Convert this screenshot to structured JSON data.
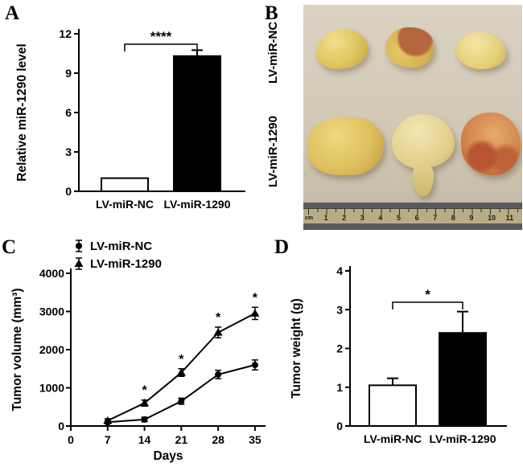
{
  "panels": {
    "A": {
      "letter": "A"
    },
    "B": {
      "letter": "B",
      "row_labels": [
        "LV-miR-NC",
        "LV-miR-1290"
      ],
      "ruler_unit": "cm",
      "ruler_numbers": [
        1,
        2,
        3,
        4,
        5,
        6,
        7,
        8,
        9,
        10,
        11
      ]
    },
    "C": {
      "letter": "C"
    },
    "D": {
      "letter": "D"
    }
  },
  "chart_data": [
    {
      "panel": "A",
      "type": "bar",
      "categories": [
        "LV-miR-NC",
        "LV-miR-1290"
      ],
      "values": [
        1.0,
        10.3
      ],
      "errors": [
        0.05,
        0.45
      ],
      "bar_colors": [
        "#ffffff",
        "#000000"
      ],
      "ylabel": "Relative miR-1290 level",
      "ylim": [
        0,
        12
      ],
      "yticks": [
        0,
        3,
        6,
        9,
        12
      ],
      "significance": {
        "label": "****",
        "between": [
          0,
          1
        ]
      }
    },
    {
      "panel": "C",
      "type": "line",
      "x": [
        7,
        14,
        21,
        28,
        35
      ],
      "xticks": [
        0,
        7,
        14,
        21,
        28,
        35
      ],
      "xlim": [
        0,
        37
      ],
      "xlabel": "Days",
      "ylabel": "Tumor volume (mm³)",
      "ylim": [
        0,
        4000
      ],
      "yticks": [
        0,
        1000,
        2000,
        3000,
        4000
      ],
      "series": [
        {
          "name": "LV-miR-NC",
          "marker": "circle",
          "values": [
            100,
            170,
            650,
            1350,
            1600
          ],
          "errors": [
            40,
            60,
            80,
            110,
            130
          ]
        },
        {
          "name": "LV-miR-1290",
          "marker": "triangle",
          "values": [
            140,
            600,
            1400,
            2450,
            2950
          ],
          "errors": [
            50,
            80,
            100,
            140,
            160
          ],
          "sig_points": [
            1,
            2,
            3,
            4
          ],
          "sig_label": "*"
        }
      ]
    },
    {
      "panel": "D",
      "type": "bar",
      "categories": [
        "LV-miR-NC",
        "LV-miR-1290"
      ],
      "values": [
        1.05,
        2.4
      ],
      "errors": [
        0.18,
        0.55
      ],
      "bar_colors": [
        "#ffffff",
        "#000000"
      ],
      "ylabel": "Tumor weight (g)",
      "ylim": [
        0,
        4
      ],
      "yticks": [
        0,
        1,
        2,
        3,
        4
      ],
      "significance": {
        "label": "*",
        "between": [
          0,
          1
        ]
      }
    }
  ]
}
